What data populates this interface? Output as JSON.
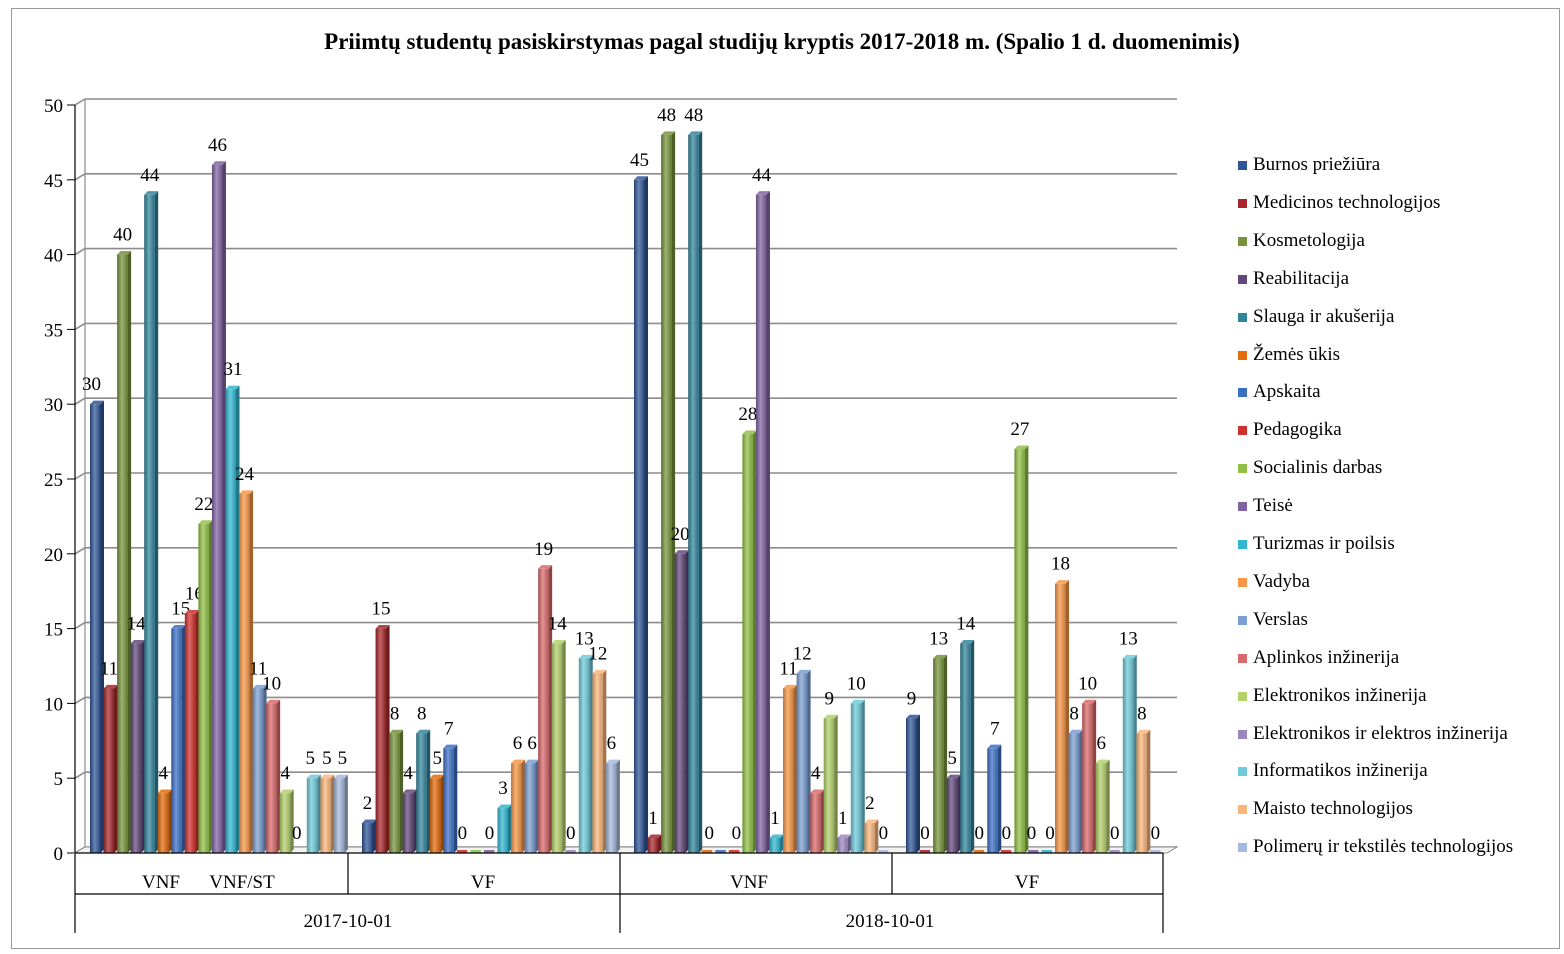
{
  "chart_data": {
    "type": "bar",
    "title": "Priimtų studentų pasiskirstymas pagal studijų kryptis 2017-2018 m. (Spalio 1 d. duomenimis)",
    "ylim": [
      0,
      50
    ],
    "yticks": [
      "0",
      "5",
      "10",
      "15",
      "20",
      "25",
      "30",
      "35",
      "40",
      "45",
      "50"
    ],
    "grid": true,
    "legend_position": "right",
    "years": [
      "2017-10-01",
      "2018-10-01"
    ],
    "groups": [
      {
        "year": "2017-10-01",
        "labels": [
          "VNF",
          "VNF/ST"
        ],
        "values": [
          30,
          11,
          40,
          14,
          44,
          4,
          15,
          16,
          22,
          46,
          31,
          24,
          11,
          10,
          4,
          null,
          5,
          5,
          5
        ],
        "data_labels": [
          "30",
          "11",
          "40",
          "14",
          "44",
          "4",
          "15",
          "16",
          "22",
          "46",
          "31",
          "24",
          "11",
          "10",
          "4",
          "0",
          "5",
          "5",
          "5"
        ]
      },
      {
        "year": "2017-10-01",
        "labels": [
          "VF"
        ],
        "values": [
          2,
          15,
          8,
          4,
          8,
          5,
          7,
          0,
          0,
          0,
          3,
          6,
          6,
          19,
          14,
          0,
          13,
          12,
          6
        ],
        "data_labels": [
          "2",
          "15",
          "8",
          "4",
          "8",
          "5",
          "7",
          "0",
          "",
          "0",
          "3",
          "6",
          "6",
          "19",
          "14",
          "0",
          "13",
          "12",
          "6"
        ]
      },
      {
        "year": "2018-10-01",
        "labels": [
          "VNF"
        ],
        "values": [
          45,
          1,
          48,
          20,
          48,
          0,
          0,
          0,
          28,
          44,
          1,
          11,
          12,
          4,
          9,
          1,
          10,
          2,
          0
        ],
        "data_labels": [
          "45",
          "1",
          "48",
          "20",
          "48",
          "0",
          "",
          "0",
          "28",
          "44",
          "1",
          "11",
          "12",
          "4",
          "9",
          "1",
          "10",
          "2",
          "0"
        ]
      },
      {
        "year": "2018-10-01",
        "labels": [
          "VF"
        ],
        "values": [
          9,
          0,
          13,
          5,
          14,
          0,
          7,
          0,
          27,
          0,
          0,
          18,
          8,
          10,
          6,
          0,
          13,
          8,
          0
        ],
        "data_labels": [
          "9",
          "0",
          "13",
          "5",
          "14",
          "0",
          "7",
          "0",
          "27",
          "0",
          "0",
          "18",
          "8",
          "10",
          "6",
          "0",
          "13",
          "8",
          "0"
        ]
      }
    ],
    "series": [
      {
        "name": "Burnos priežiūra",
        "color": "#2f5597"
      },
      {
        "name": "Medicinos technologijos",
        "color": "#a8262a"
      },
      {
        "name": "Kosmetologija",
        "color": "#77933c"
      },
      {
        "name": "Reabilitacija",
        "color": "#60497a"
      },
      {
        "name": "Slauga ir akušerija",
        "color": "#31859c"
      },
      {
        "name": "Žemės ūkis",
        "color": "#e46c0a"
      },
      {
        "name": "Apskaita",
        "color": "#3a6fc4"
      },
      {
        "name": "Pedagogika",
        "color": "#d0312d"
      },
      {
        "name": "Socialinis darbas",
        "color": "#92c047"
      },
      {
        "name": "Teisė",
        "color": "#8064a2"
      },
      {
        "name": "Turizmas ir poilsis",
        "color": "#31b7d1"
      },
      {
        "name": "Vadyba",
        "color": "#f79646"
      },
      {
        "name": "Verslas",
        "color": "#7b9fd4"
      },
      {
        "name": "Aplinkos inžinerija",
        "color": "#d9696a"
      },
      {
        "name": "Elektronikos inžinerija",
        "color": "#b3d16b"
      },
      {
        "name": "Elektronikos ir elektros inžinerija",
        "color": "#9d87c0"
      },
      {
        "name": "Informatikos inžinerija",
        "color": "#6fcadb"
      },
      {
        "name": "Maisto technologijos",
        "color": "#fbb57a"
      },
      {
        "name": "Polimerų ir tekstilės technologijos",
        "color": "#a5b8dd"
      }
    ]
  }
}
